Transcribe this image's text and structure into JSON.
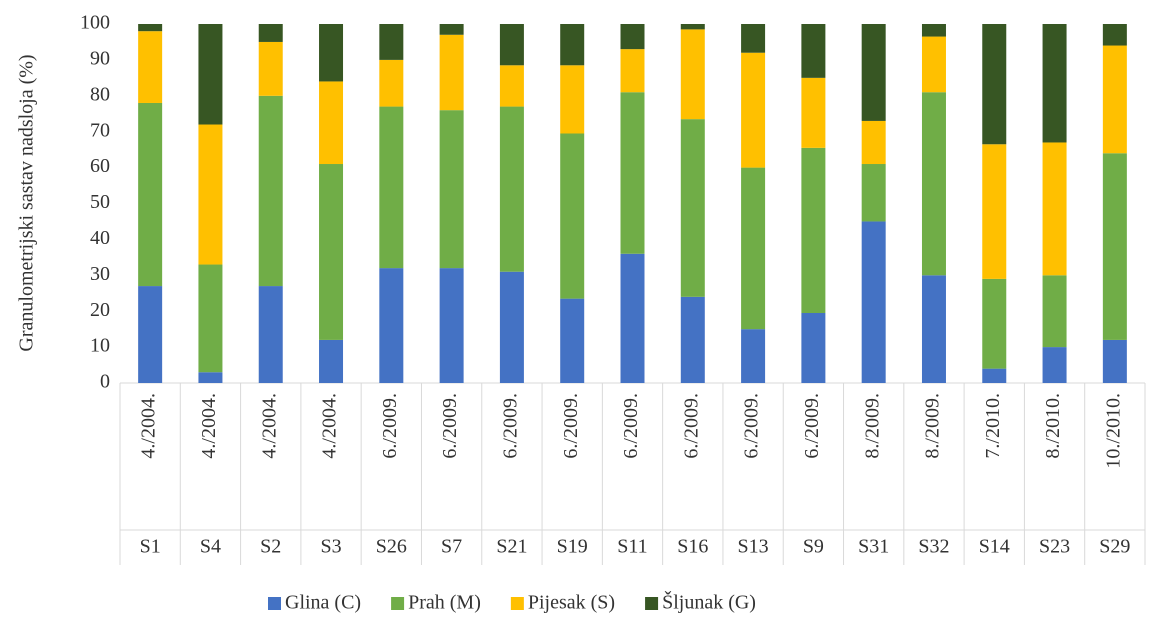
{
  "chart_data": {
    "type": "stacked_bar",
    "y_label": "Granulometrijski sastav nadsloja (%)",
    "categories": [
      "S1",
      "S4",
      "S2",
      "S3",
      "S26",
      "S7",
      "S21",
      "S19",
      "S11",
      "S16",
      "S13",
      "S9",
      "S31",
      "S32",
      "S14",
      "S23",
      "S29"
    ],
    "dates": [
      "4./2004.",
      "4./2004.",
      "4./2004.",
      "4./2004.",
      "6./2009.",
      "6./2009.",
      "6./2009.",
      "6./2009.",
      "6./2009.",
      "6./2009.",
      "6./2009.",
      "6./2009.",
      "8./2009.",
      "8./2009.",
      "7./2010.",
      "8./2010.",
      "10./2010."
    ],
    "series": [
      {
        "name": "Glina (C)",
        "color": "#4472c4",
        "values": [
          27,
          3,
          27,
          12,
          32,
          32,
          31,
          23.5,
          36,
          24,
          15,
          19.5,
          45,
          30,
          4,
          10,
          12
        ]
      },
      {
        "name": "Prah (M)",
        "color": "#70ad47",
        "values": [
          51,
          30,
          53,
          49,
          45,
          44,
          46,
          46,
          45,
          49.5,
          45,
          46,
          16,
          51,
          25,
          20,
          52
        ]
      },
      {
        "name": "Pijesak (S)",
        "color": "#ffc000",
        "values": [
          20,
          39,
          15,
          23,
          13,
          21,
          11.5,
          19,
          12,
          25,
          32,
          19.5,
          12,
          15.5,
          37.5,
          37,
          30
        ]
      },
      {
        "name": "Šljunak (G)",
        "color": "#375623",
        "values": [
          2,
          28,
          5,
          16,
          10,
          3,
          11.5,
          11.5,
          7,
          1.5,
          8,
          15,
          27,
          3.5,
          33.5,
          33,
          6
        ]
      }
    ],
    "ylim": [
      0,
      100
    ],
    "yticks": [
      0,
      10,
      20,
      30,
      40,
      50,
      60,
      70,
      80,
      90,
      100
    ],
    "legend": "bottom"
  }
}
